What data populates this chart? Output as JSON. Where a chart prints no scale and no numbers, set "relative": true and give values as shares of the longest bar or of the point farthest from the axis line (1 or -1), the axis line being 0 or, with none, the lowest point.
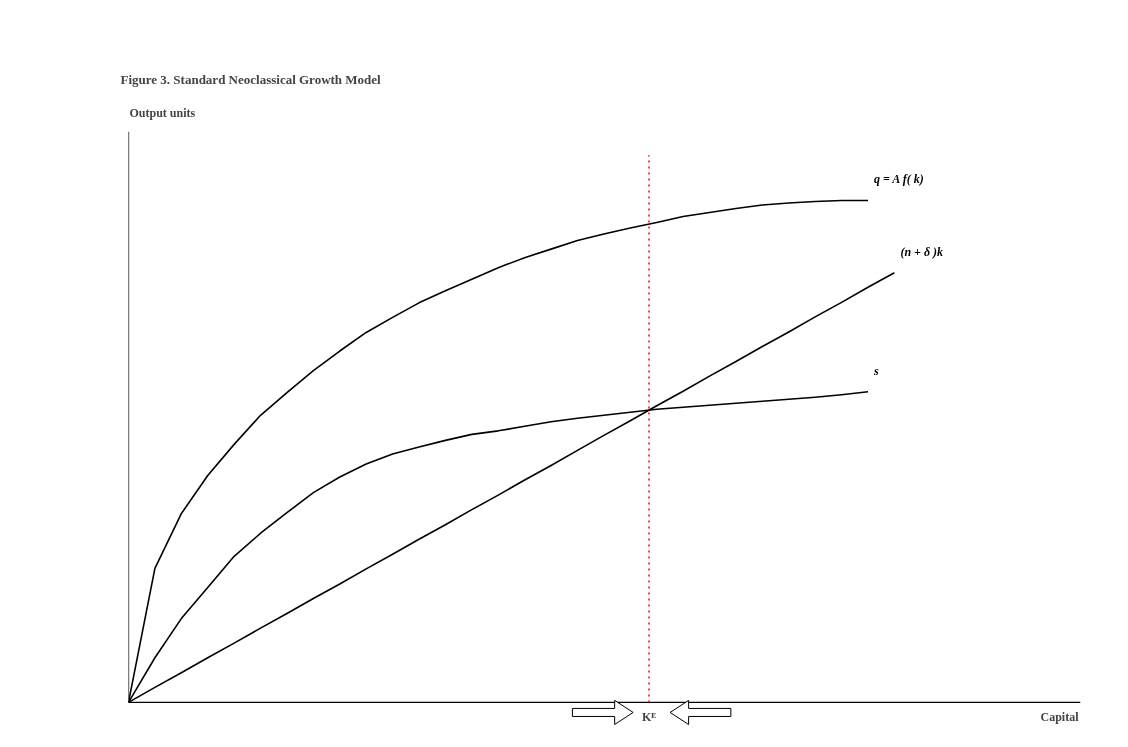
{
  "chart_data": {
    "type": "line",
    "title": "Figure 3. Standard Neoclassical Growth Model",
    "relative": true,
    "annotations": [
      "Output units",
      "Capital",
      "Kᴱ"
    ],
    "categories": [
      null,
      null,
      null,
      null,
      null,
      null,
      null,
      null,
      null,
      null,
      null,
      null,
      null,
      null,
      null,
      null,
      null,
      null,
      null,
      null,
      null,
      null,
      null,
      null,
      null,
      null,
      null,
      null,
      null,
      null
    ],
    "series": [
      {
        "name": "q = A f( k)",
        "color": "#000000",
        "values": [
          0,
          0.267,
          0.376,
          0.452,
          0.514,
          0.572,
          0.617,
          0.661,
          0.7,
          0.737,
          0.767,
          0.796,
          0.82,
          0.843,
          0.866,
          0.886,
          0.903,
          0.92,
          0.933,
          0.945,
          0.956,
          0.968,
          0.976,
          0.984,
          0.991,
          0.995,
          0.998,
          1.0,
          1.0,
          null
        ]
      },
      {
        "name": "(n + δ )k",
        "color": "#000000",
        "values": [
          0,
          0.03,
          0.059,
          0.089,
          0.118,
          0.148,
          0.177,
          0.207,
          0.236,
          0.266,
          0.295,
          0.325,
          0.354,
          0.384,
          0.413,
          0.443,
          0.472,
          0.502,
          0.532,
          0.561,
          0.591,
          0.62,
          0.65,
          0.679,
          0.709,
          0.738,
          0.768,
          0.797,
          0.827,
          0.856
        ]
      },
      {
        "name": "s",
        "color": "#000000",
        "values": [
          0,
          0.089,
          0.167,
          0.229,
          0.291,
          0.337,
          0.378,
          0.418,
          0.449,
          0.475,
          0.495,
          0.509,
          0.522,
          0.534,
          0.541,
          0.55,
          0.559,
          0.566,
          0.572,
          0.578,
          0.584,
          0.588,
          0.592,
          0.596,
          0.6,
          0.604,
          0.608,
          0.613,
          0.619,
          null
        ]
      }
    ]
  }
}
